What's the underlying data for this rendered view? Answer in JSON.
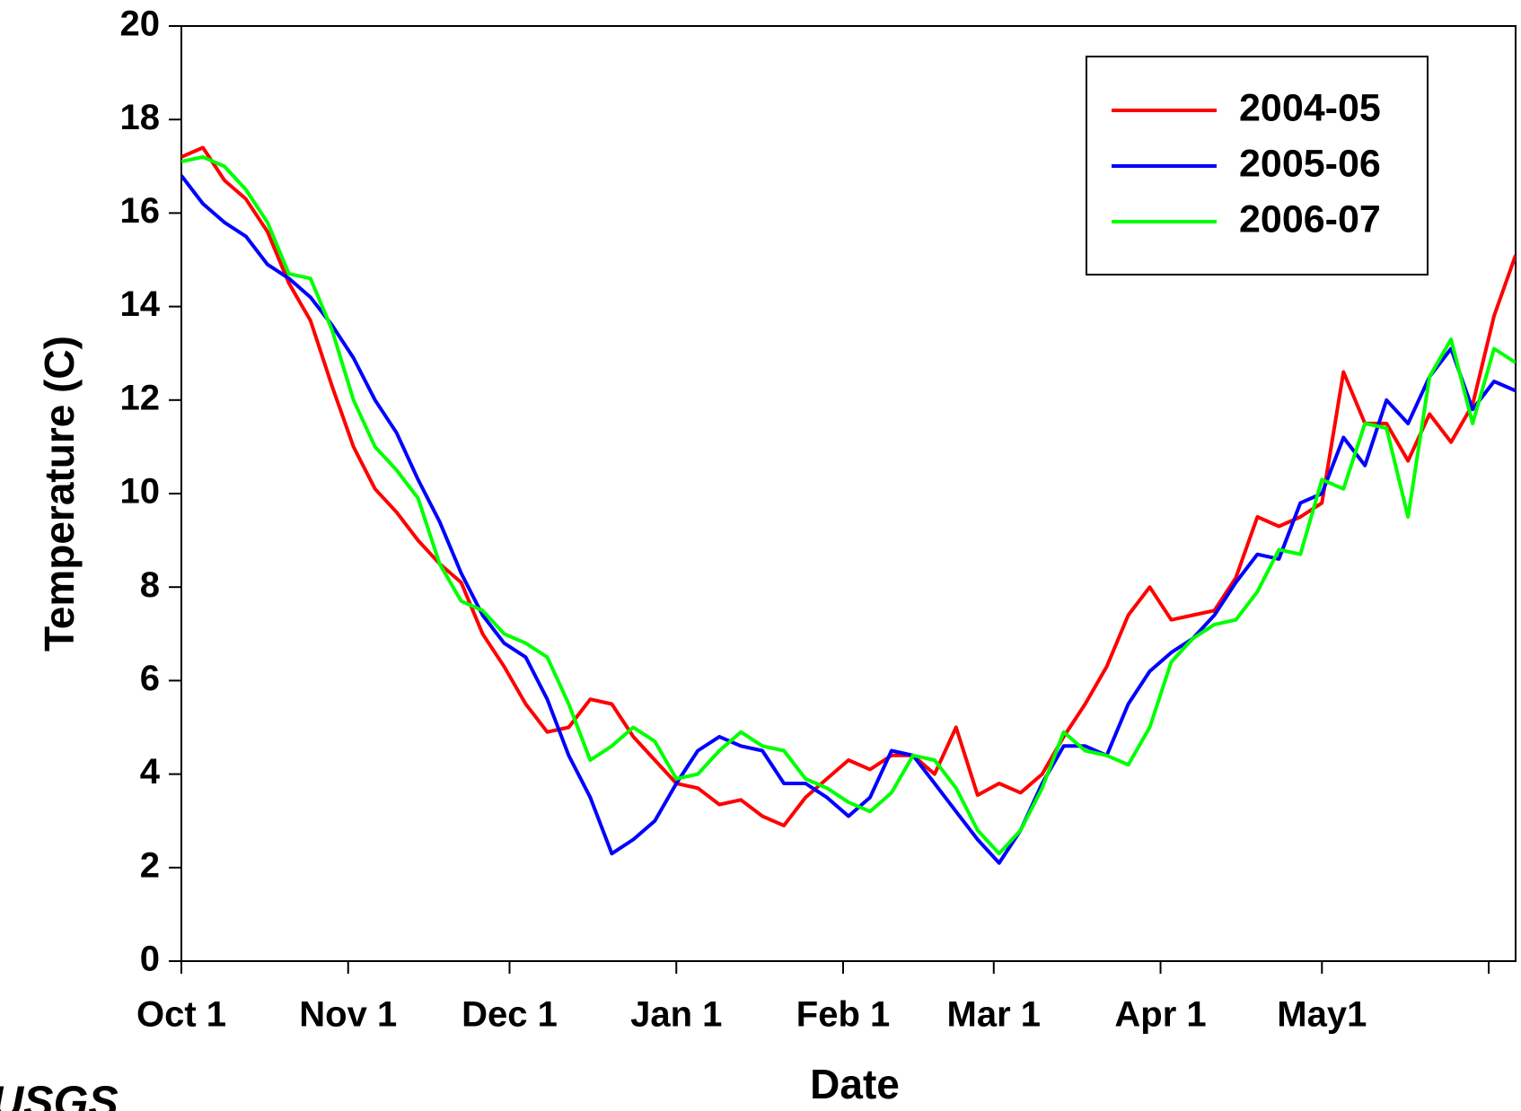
{
  "chart_data": {
    "type": "line",
    "xlabel": "Date",
    "ylabel": "Temperature (C)",
    "logo": "USGS",
    "x": [
      0,
      4,
      8,
      12,
      16,
      20,
      24,
      28,
      32,
      36,
      40,
      44,
      48,
      52,
      56,
      60,
      64,
      68,
      72,
      76,
      80,
      84,
      88,
      92,
      96,
      100,
      104,
      108,
      112,
      116,
      120,
      124,
      128,
      132,
      136,
      140,
      144,
      148,
      152,
      156,
      160,
      164,
      168,
      172,
      176,
      180,
      184,
      188,
      192,
      196,
      200,
      204,
      208,
      212,
      216,
      220,
      224,
      228,
      232,
      236,
      240,
      244,
      248
    ],
    "series": [
      {
        "name": "2004-05",
        "color": "#ff0000",
        "values": [
          17.2,
          17.4,
          16.7,
          16.3,
          15.6,
          14.5,
          13.7,
          12.3,
          11.0,
          10.1,
          9.6,
          9.0,
          8.5,
          8.1,
          7.0,
          6.3,
          5.5,
          4.9,
          5.0,
          5.6,
          5.5,
          4.8,
          4.3,
          3.8,
          3.7,
          3.35,
          3.45,
          3.1,
          2.9,
          3.5,
          3.9,
          4.3,
          4.1,
          4.4,
          4.4,
          4.0,
          5.0,
          3.55,
          3.8,
          3.6,
          4.0,
          4.8,
          5.5,
          6.3,
          7.4,
          8.0,
          7.3,
          7.4,
          7.5,
          8.2,
          9.5,
          9.3,
          9.5,
          9.8,
          12.6,
          11.5,
          11.5,
          10.7,
          11.7,
          11.1,
          11.9,
          13.8,
          15.1
        ]
      },
      {
        "name": "2005-06",
        "color": "#0000ff",
        "values": [
          16.8,
          16.2,
          15.8,
          15.5,
          14.9,
          14.6,
          14.2,
          13.6,
          12.9,
          12.0,
          11.3,
          10.3,
          9.4,
          8.3,
          7.4,
          6.8,
          6.5,
          5.6,
          4.4,
          3.5,
          2.3,
          2.6,
          3.0,
          3.8,
          4.5,
          4.8,
          4.6,
          4.5,
          3.8,
          3.8,
          3.5,
          3.1,
          3.5,
          4.5,
          4.4,
          3.8,
          3.2,
          2.6,
          2.1,
          2.8,
          3.8,
          4.6,
          4.6,
          4.4,
          5.5,
          6.2,
          6.6,
          6.9,
          7.4,
          8.1,
          8.7,
          8.6,
          9.8,
          10.0,
          11.2,
          10.6,
          12.0,
          11.5,
          12.5,
          13.1,
          11.8,
          12.4,
          12.2
        ]
      },
      {
        "name": "2006-07",
        "color": "#00ff00",
        "values": [
          17.1,
          17.2,
          17.0,
          16.5,
          15.8,
          14.7,
          14.6,
          13.5,
          12.0,
          11.0,
          10.5,
          9.9,
          8.5,
          7.7,
          7.5,
          7.0,
          6.8,
          6.5,
          5.5,
          4.3,
          4.6,
          5.0,
          4.7,
          3.9,
          4.0,
          4.5,
          4.9,
          4.6,
          4.5,
          3.9,
          3.7,
          3.4,
          3.2,
          3.6,
          4.4,
          4.3,
          3.7,
          2.8,
          2.3,
          2.8,
          3.7,
          4.9,
          4.5,
          4.4,
          4.2,
          5.0,
          6.4,
          6.9,
          7.2,
          7.3,
          7.9,
          8.8,
          8.7,
          10.3,
          10.1,
          11.5,
          11.4,
          9.5,
          12.5,
          13.3,
          11.5,
          13.1,
          12.8
        ]
      }
    ],
    "xlim": [
      0,
      248
    ],
    "xticks": [
      {
        "value": 0,
        "label": "Oct 1"
      },
      {
        "value": 31,
        "label": "Nov 1"
      },
      {
        "value": 61,
        "label": "Dec 1"
      },
      {
        "value": 92,
        "label": "Jan 1"
      },
      {
        "value": 123,
        "label": "Feb 1"
      },
      {
        "value": 151,
        "label": "Mar 1"
      },
      {
        "value": 182,
        "label": "Apr 1"
      },
      {
        "value": 212,
        "label": "May1"
      },
      {
        "value": 243,
        "label": null
      }
    ],
    "ylim": [
      0,
      20
    ],
    "yticks": [
      0,
      2,
      4,
      6,
      8,
      10,
      12,
      14,
      16,
      18,
      20
    ],
    "grid": false,
    "legend": "upper right"
  }
}
